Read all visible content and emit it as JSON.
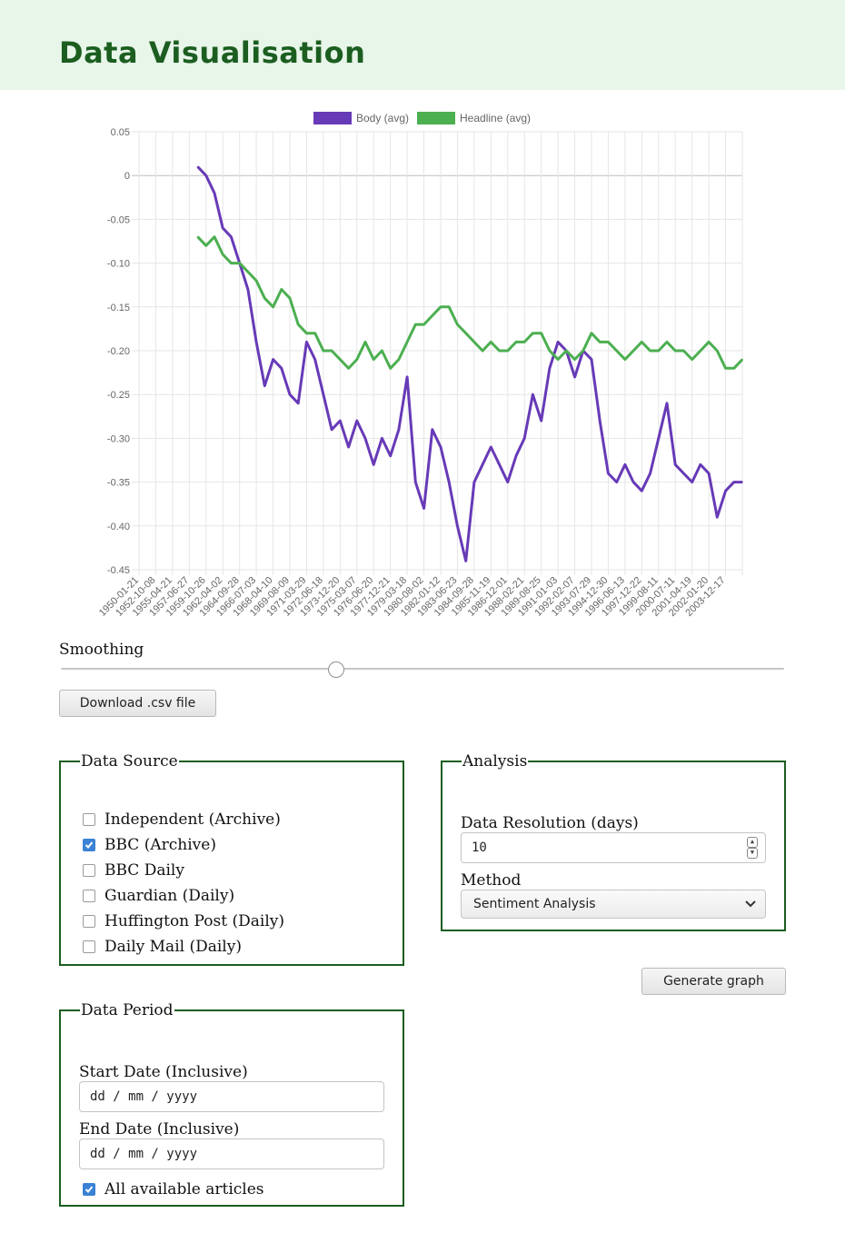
{
  "page": {
    "title": "Data Visualisation"
  },
  "chart_data": {
    "type": "line",
    "title": "",
    "xlabel": "",
    "ylabel": "",
    "ylim": [
      -0.45,
      0.05
    ],
    "yticks": [
      0.05,
      0,
      -0.05,
      -0.1,
      -0.15,
      -0.2,
      -0.25,
      -0.3,
      -0.35,
      -0.4,
      -0.45
    ],
    "ytick_labels": [
      "0.05",
      "0",
      "-0.05",
      "-0.10",
      "-0.15",
      "-0.20",
      "-0.25",
      "-0.30",
      "-0.35",
      "-0.40",
      "-0.45"
    ],
    "xtick_labels": [
      "1950-01-21",
      "1952-10-08",
      "1955-04-21",
      "1957-06-27",
      "1959-10-26",
      "1962-04-02",
      "1964-09-28",
      "1966-07-03",
      "1968-04-10",
      "1969-08-09",
      "1971-03-29",
      "1972-06-18",
      "1973-12-20",
      "1975-03-07",
      "1976-06-20",
      "1977-12-21",
      "1979-03-18",
      "1980-08-02",
      "1982-01-12",
      "1983-06-23",
      "1984-09-28",
      "1985-11-19",
      "1986-12-01",
      "1988-02-21",
      "1989-08-25",
      "1991-01-03",
      "1992-02-07",
      "1993-07-29",
      "1994-12-30",
      "1996-06-13",
      "1997-12-22",
      "1999-08-11",
      "2000-07-11",
      "2001-04-19",
      "2002-01-20",
      "2003-12-17"
    ],
    "legend_position": "top",
    "grid": true,
    "series": [
      {
        "name": "Body (avg)",
        "color": "#673ab7",
        "x_index": [
          3.5,
          4,
          4.5,
          5,
          5.5,
          6,
          6.5,
          7,
          7.5,
          8,
          8.5,
          9,
          9.5,
          10,
          10.5,
          11,
          11.5,
          12,
          12.5,
          13,
          13.5,
          14,
          14.5,
          15,
          15.5,
          16,
          16.5,
          17,
          17.5,
          18,
          18.5,
          19,
          19.5,
          20,
          20.5,
          21,
          21.5,
          22,
          22.5,
          23,
          23.5,
          24,
          24.5,
          25,
          25.5,
          26,
          26.5,
          27,
          27.5,
          28,
          28.5,
          29,
          29.5,
          30,
          30.5,
          31,
          31.5,
          32,
          32.5,
          33,
          33.5,
          34,
          34.5,
          35,
          35.5,
          36
        ],
        "values": [
          0.01,
          0.0,
          -0.02,
          -0.06,
          -0.07,
          -0.1,
          -0.13,
          -0.19,
          -0.24,
          -0.21,
          -0.22,
          -0.25,
          -0.26,
          -0.19,
          -0.21,
          -0.25,
          -0.29,
          -0.28,
          -0.31,
          -0.28,
          -0.3,
          -0.33,
          -0.3,
          -0.32,
          -0.29,
          -0.23,
          -0.35,
          -0.38,
          -0.29,
          -0.31,
          -0.35,
          -0.4,
          -0.44,
          -0.35,
          -0.33,
          -0.31,
          -0.33,
          -0.35,
          -0.32,
          -0.3,
          -0.25,
          -0.28,
          -0.22,
          -0.19,
          -0.2,
          -0.23,
          -0.2,
          -0.21,
          -0.28,
          -0.34,
          -0.35,
          -0.33,
          -0.35,
          -0.36,
          -0.34,
          -0.3,
          -0.26,
          -0.33,
          -0.34,
          -0.35,
          -0.33,
          -0.34,
          -0.39,
          -0.36,
          -0.35,
          -0.35
        ]
      },
      {
        "name": "Headline (avg)",
        "color": "#4caf50",
        "x_index": [
          3.5,
          4,
          4.5,
          5,
          5.5,
          6,
          6.5,
          7,
          7.5,
          8,
          8.5,
          9,
          9.5,
          10,
          10.5,
          11,
          11.5,
          12,
          12.5,
          13,
          13.5,
          14,
          14.5,
          15,
          15.5,
          16,
          16.5,
          17,
          17.5,
          18,
          18.5,
          19,
          19.5,
          20,
          20.5,
          21,
          21.5,
          22,
          22.5,
          23,
          23.5,
          24,
          24.5,
          25,
          25.5,
          26,
          26.5,
          27,
          27.5,
          28,
          28.5,
          29,
          29.5,
          30,
          30.5,
          31,
          31.5,
          32,
          32.5,
          33,
          33.5,
          34,
          34.5,
          35,
          35.5,
          36
        ],
        "values": [
          -0.07,
          -0.08,
          -0.07,
          -0.09,
          -0.1,
          -0.1,
          -0.11,
          -0.12,
          -0.14,
          -0.15,
          -0.13,
          -0.14,
          -0.17,
          -0.18,
          -0.18,
          -0.2,
          -0.2,
          -0.21,
          -0.22,
          -0.21,
          -0.19,
          -0.21,
          -0.2,
          -0.22,
          -0.21,
          -0.19,
          -0.17,
          -0.17,
          -0.16,
          -0.15,
          -0.15,
          -0.17,
          -0.18,
          -0.19,
          -0.2,
          -0.19,
          -0.2,
          -0.2,
          -0.19,
          -0.19,
          -0.18,
          -0.18,
          -0.2,
          -0.21,
          -0.2,
          -0.21,
          -0.2,
          -0.18,
          -0.19,
          -0.19,
          -0.2,
          -0.21,
          -0.2,
          -0.19,
          -0.2,
          -0.2,
          -0.19,
          -0.2,
          -0.2,
          -0.21,
          -0.2,
          -0.19,
          -0.2,
          -0.22,
          -0.22,
          -0.21
        ]
      }
    ]
  },
  "smoothing": {
    "label": "Smoothing",
    "value": 0.38
  },
  "download_button": "Download .csv file",
  "data_source": {
    "legend": "Data Source",
    "items": [
      {
        "label": "Independent (Archive)",
        "checked": false
      },
      {
        "label": "BBC (Archive)",
        "checked": true
      },
      {
        "label": "BBC Daily",
        "checked": false
      },
      {
        "label": "Guardian (Daily)",
        "checked": false
      },
      {
        "label": "Huffington Post (Daily)",
        "checked": false
      },
      {
        "label": "Daily Mail (Daily)",
        "checked": false
      }
    ]
  },
  "analysis": {
    "legend": "Analysis",
    "resolution_label": "Data Resolution (days)",
    "resolution_value": "10",
    "method_label": "Method",
    "method_value": "Sentiment Analysis"
  },
  "generate_button": "Generate graph",
  "data_period": {
    "legend": "Data Period",
    "start_label": "Start Date (Inclusive)",
    "start_placeholder": "dd / mm / yyyy",
    "end_label": "End Date (Inclusive)",
    "end_placeholder": "dd / mm / yyyy",
    "all_label": "All available articles",
    "all_checked": true
  }
}
